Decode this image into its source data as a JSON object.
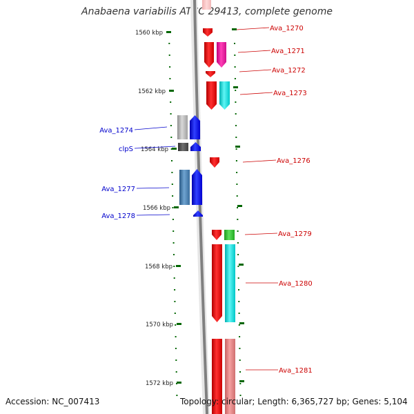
{
  "title": "Anabaena variabilis ATCC 29413, complete genome",
  "footer": {
    "accession": "Accession: NC_007413",
    "topology": "Topology: circular; Length: 6,365,727 bp; Genes: 5,104"
  },
  "ticks": [
    "1560 kbp",
    "1562 kbp",
    "1564 kbp",
    "1566 kbp",
    "1568 kbp",
    "1570 kbp",
    "1572 kbp"
  ],
  "genes_forward": [
    {
      "label": "Ava_1270"
    },
    {
      "label": "Ava_1271"
    },
    {
      "label": "Ava_1272"
    },
    {
      "label": "Ava_1273"
    },
    {
      "label": "Ava_1276"
    },
    {
      "label": "Ava_1279"
    },
    {
      "label": "Ava_1280"
    },
    {
      "label": "Ava_1281"
    }
  ],
  "genes_reverse": [
    {
      "label": "Ava_1274"
    },
    {
      "label": "clpS"
    },
    {
      "label": "Ava_1277"
    },
    {
      "label": "Ava_1278"
    }
  ],
  "colors": {
    "forward_label": "#cc0000",
    "reverse_label": "#0000cc",
    "tick": "#006600",
    "backbone": "#808080",
    "red": "#ff0000",
    "magenta": "#ff1aa8",
    "cyan": "#00e6e6",
    "green": "#33cc33",
    "pink": "#e88080",
    "blue": "#0000ff",
    "gray": "#b0b0b0",
    "dark_gray": "#505050",
    "steel_blue": "#4682b4"
  }
}
